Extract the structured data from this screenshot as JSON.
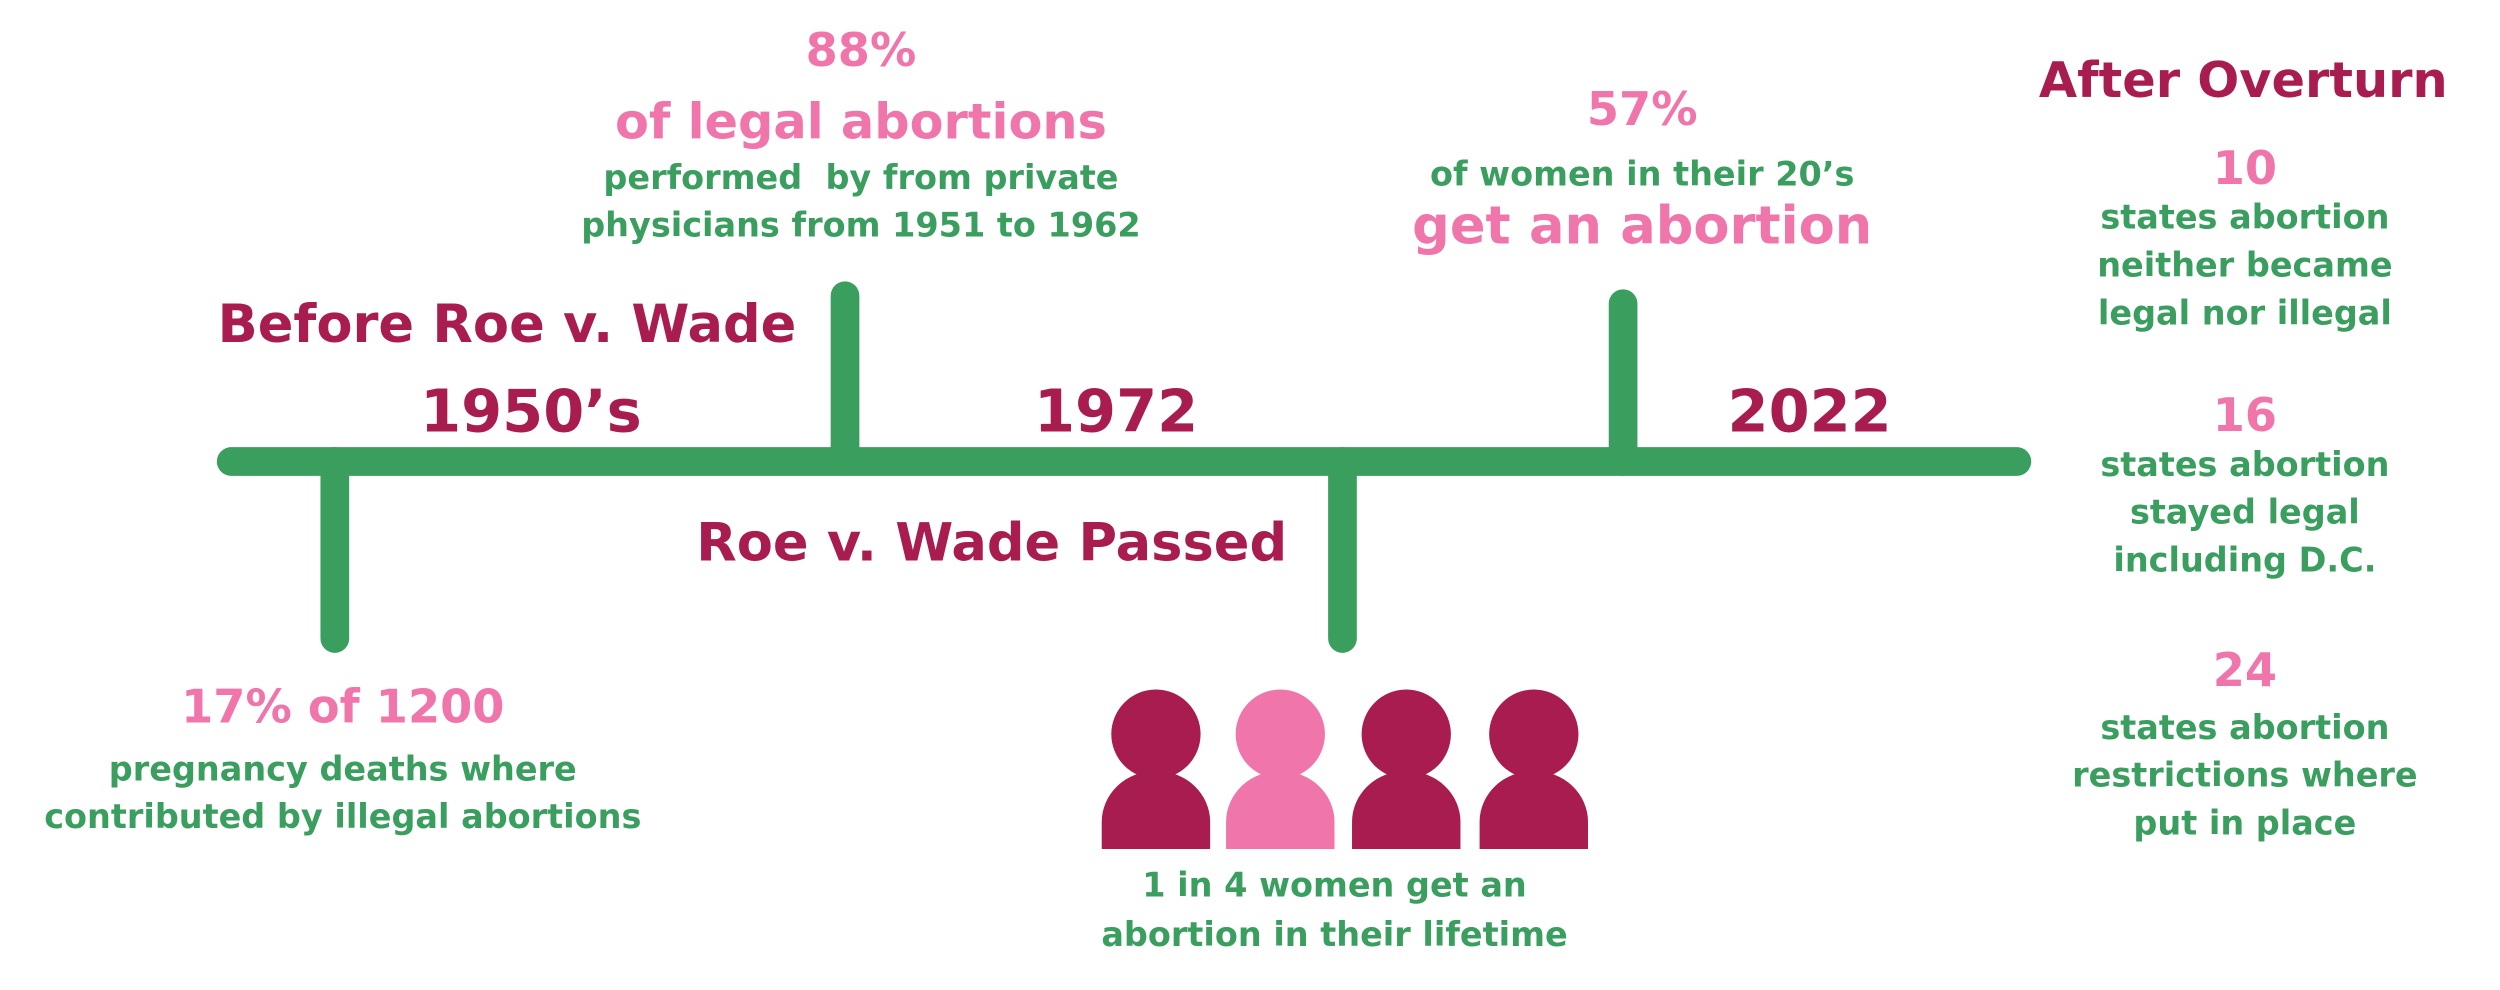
{
  "timeline": {
    "eras": [
      "1950’s",
      "1972",
      "2022"
    ],
    "headings": [
      "Before Roe v. Wade",
      "Roe v. Wade Passed"
    ],
    "callouts": [
      {
        "lines": [
          "88%",
          "of legal abortions",
          "performed  by from private",
          "physicians from 1951 to 1962"
        ]
      },
      {
        "lines": [
          "57%",
          "of women in their 20’s",
          "get an abortion"
        ]
      },
      {
        "lines": [
          "17% of 1200",
          "pregnancy deaths where",
          "contributed by illegal abortions"
        ]
      },
      {
        "lines": [
          "1 in 4 women get an",
          "abortion in their lifetime"
        ]
      }
    ]
  },
  "after": {
    "title": "After Overturn",
    "items": [
      {
        "number": "10",
        "lines": [
          "states abortion",
          "neither became",
          "legal nor illegal"
        ]
      },
      {
        "number": "16",
        "lines": [
          "states abortion",
          "stayed legal",
          "including D.C."
        ]
      },
      {
        "number": "24",
        "lines": [
          "states abortion",
          "restrictions where",
          "put in place"
        ]
      }
    ]
  }
}
